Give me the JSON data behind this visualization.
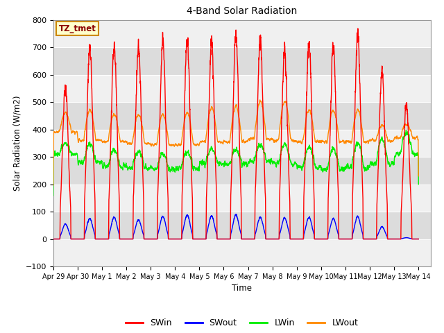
{
  "title": "4-Band Solar Radiation",
  "xlabel": "Time",
  "ylabel": "Solar Radiation (W/m2)",
  "ylim": [
    -100,
    800
  ],
  "yticks": [
    -100,
    0,
    100,
    200,
    300,
    400,
    500,
    600,
    700,
    800
  ],
  "annotation_label": "TZ_tmet",
  "annotation_bbox_facecolor": "#ffffcc",
  "annotation_bbox_edgecolor": "#cc8800",
  "colors": {
    "SWin": "#ff0000",
    "SWout": "#0000ff",
    "LWin": "#00ee00",
    "LWout": "#ff8800"
  },
  "background_color": "#ffffff",
  "plot_bg_light": "#f0f0f0",
  "plot_bg_dark": "#dcdcdc",
  "grid_color": "#ffffff",
  "n_days": 15,
  "xtick_labels": [
    "Apr 29",
    "Apr 30",
    "May 1",
    "May 2",
    "May 3",
    "May 4",
    "May 5",
    "May 6",
    "May 7",
    "May 8",
    "May 9",
    "May 10",
    "May 11",
    "May 12",
    "May 13",
    "May 14"
  ],
  "legend_entries": [
    "SWin",
    "SWout",
    "LWin",
    "LWout"
  ],
  "swin_peaks": [
    560,
    700,
    710,
    700,
    720,
    730,
    715,
    740,
    725,
    695,
    715,
    700,
    750,
    610,
    490
  ],
  "swout_peaks": [
    55,
    75,
    80,
    70,
    82,
    88,
    85,
    88,
    80,
    78,
    80,
    75,
    82,
    45,
    5
  ],
  "lwin_base": [
    310,
    280,
    265,
    260,
    255,
    258,
    275,
    275,
    285,
    275,
    265,
    255,
    260,
    275,
    310
  ],
  "lwin_peak_add": [
    40,
    65,
    60,
    60,
    55,
    60,
    55,
    50,
    60,
    70,
    70,
    75,
    90,
    90,
    80
  ],
  "lwout_base": [
    390,
    360,
    355,
    350,
    345,
    345,
    355,
    355,
    365,
    360,
    355,
    355,
    355,
    360,
    370
  ],
  "lwout_peak_add": [
    70,
    110,
    100,
    105,
    110,
    115,
    125,
    130,
    140,
    145,
    115,
    115,
    115,
    55,
    50
  ]
}
